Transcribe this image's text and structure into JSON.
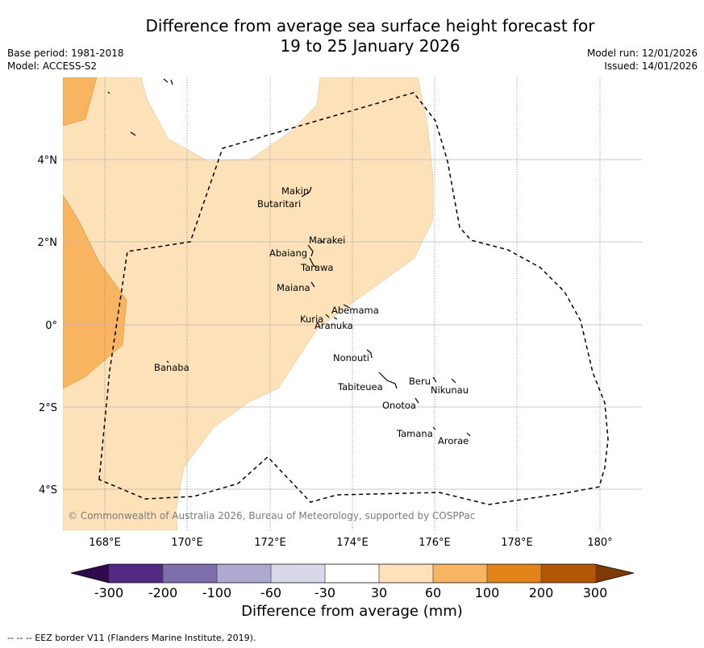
{
  "title": {
    "line1": "Difference from average sea surface height forecast for",
    "line2": "19 to 25 January 2026"
  },
  "meta": {
    "base_period": "Base period: 1981-2018",
    "model": "Model: ACCESS-S2",
    "model_run": "Model run: 12/01/2026",
    "issued": "Issued: 14/01/2026"
  },
  "map": {
    "lon_ticks": [
      "168°E",
      "170°E",
      "172°E",
      "174°E",
      "176°E",
      "178°E",
      "180°"
    ],
    "lat_ticks": [
      "4°N",
      "2°N",
      "0°",
      "2°S",
      "4°S"
    ],
    "places": [
      {
        "name": "Makin",
        "lon": 172.9,
        "lat": 3.2
      },
      {
        "name": "Butaritari",
        "lon": 172.8,
        "lat": 3.0
      },
      {
        "name": "Marakei",
        "lon": 173.3,
        "lat": 2.0
      },
      {
        "name": "Abaiang",
        "lon": 172.9,
        "lat": 1.8
      },
      {
        "name": "Tarawa",
        "lon": 173.0,
        "lat": 1.4
      },
      {
        "name": "Maiana",
        "lon": 173.0,
        "lat": 0.9
      },
      {
        "name": "Abemama",
        "lon": 173.9,
        "lat": 0.4
      },
      {
        "name": "Kuria",
        "lon": 173.4,
        "lat": 0.2
      },
      {
        "name": "Aranuka",
        "lon": 173.6,
        "lat": 0.2
      },
      {
        "name": "Banaba",
        "lon": 169.5,
        "lat": -0.9
      },
      {
        "name": "Nonouti",
        "lon": 174.4,
        "lat": -0.7
      },
      {
        "name": "Tabiteuea",
        "lon": 174.8,
        "lat": -1.3
      },
      {
        "name": "Beru",
        "lon": 176.0,
        "lat": -1.3
      },
      {
        "name": "Nikunau",
        "lon": 176.5,
        "lat": -1.4
      },
      {
        "name": "Onotoa",
        "lon": 175.6,
        "lat": -1.8
      },
      {
        "name": "Tamana",
        "lon": 176.0,
        "lat": -2.5
      },
      {
        "name": "Arorae",
        "lon": 176.8,
        "lat": -2.6
      }
    ],
    "copyright": "© Commonwealth of Australia 2026, Bureau of Meteorology, supported by COSPPac"
  },
  "colorbar": {
    "title": "Difference from average (mm)",
    "tick_labels": [
      "-300",
      "-200",
      "-100",
      "-60",
      "-30",
      "30",
      "60",
      "100",
      "200",
      "300"
    ],
    "colors": [
      "#522a83",
      "#7e6eab",
      "#aea9d0",
      "#d9d8ea",
      "#ffffff",
      "#fde2b9",
      "#f9b461",
      "#e2841a",
      "#b25805"
    ],
    "under_color": "#2f0a4c",
    "over_color": "#7d3a05"
  },
  "colors": {
    "light_orange": "#fde2b9",
    "medium_orange": "#f9b461"
  },
  "footer": "--  --  -- EEZ border V11 (Flanders Marine Institute, 2019)."
}
